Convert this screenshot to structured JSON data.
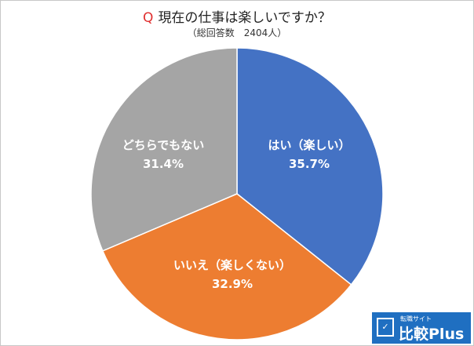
{
  "header": {
    "q_mark": "Q",
    "title": "現在の仕事は楽しいですか？",
    "subtitle": "（総回答数　2404人）"
  },
  "chart_data": {
    "type": "pie",
    "title": "現在の仕事は楽しいですか？",
    "subtitle": "（総回答数　2404人）",
    "slices": [
      {
        "label": "はい（楽しい）",
        "value": 35.7,
        "value_label": "35.7%",
        "color": "#4472c4"
      },
      {
        "label": "いいえ（楽しくない）",
        "value": 32.9,
        "value_label": "32.9%",
        "color": "#ed7d31"
      },
      {
        "label": "どちらでもない",
        "value": 31.4,
        "value_label": "31.4%",
        "color": "#a5a5a5"
      }
    ],
    "start": "12 o'clock",
    "direction": "clockwise",
    "legend": "none"
  },
  "logo": {
    "tagline": "転職サイト",
    "name": "比較Plus",
    "badge": "✓"
  }
}
